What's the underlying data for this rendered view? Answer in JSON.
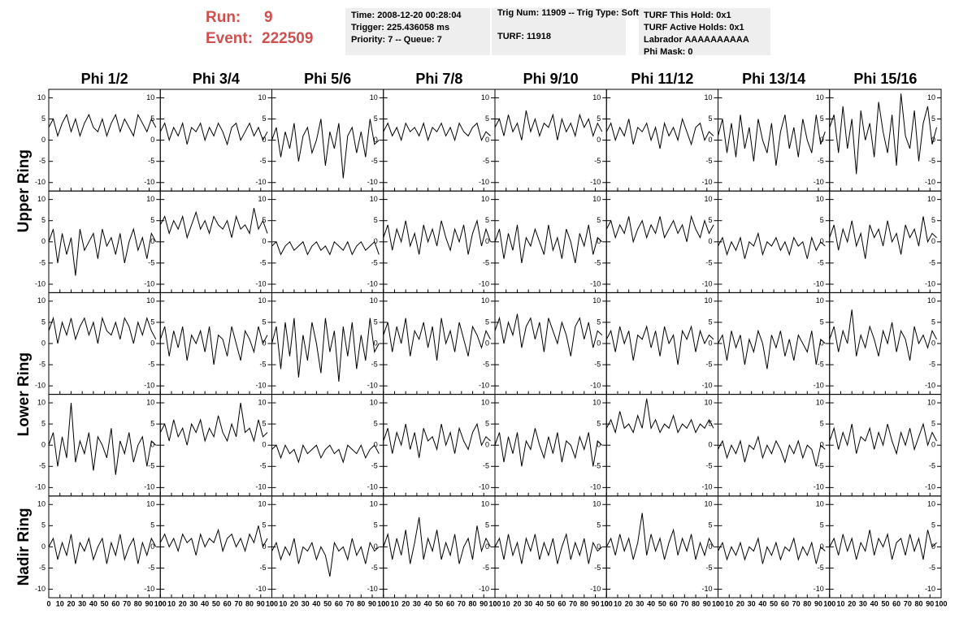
{
  "header": {
    "run_label": "Run:",
    "run": 9,
    "event_label": "Event:",
    "event": 222509
  },
  "info": [
    [
      "Time: 2008-12-20 00:28:04",
      "Trigger: 225.436058 ms",
      "Priority: 7 -- Queue: 7"
    ],
    [
      "Trig Num: 11909 -- Trig Type: Soft",
      "TURF: 11918"
    ],
    [
      "TURF This Hold: 0x1",
      "TURF Active Holds: 0x1",
      "Labrador AAAAAAAAAA",
      "Phi Mask: 0"
    ]
  ],
  "columns": [
    "Phi 1/2",
    "Phi 3/4",
    "Phi 5/6",
    "Phi 7/8",
    "Phi 9/10",
    "Phi 11/12",
    "Phi 13/14",
    "Phi 15/16"
  ],
  "row_labels": [
    "Upper Ring",
    "Lower Ring",
    "Nadir Ring"
  ],
  "plot": {
    "xlim": [
      0,
      100
    ],
    "ylim": [
      -12,
      12
    ],
    "xticks": [
      0,
      10,
      20,
      30,
      40,
      50,
      60,
      70,
      80,
      90,
      100
    ],
    "yticks": [
      -10,
      -5,
      0,
      5,
      10
    ],
    "x": [
      0,
      4,
      8,
      12,
      16,
      20,
      24,
      28,
      32,
      36,
      40,
      44,
      48,
      52,
      56,
      60,
      64,
      68,
      72,
      76,
      80,
      84,
      88,
      92,
      96
    ],
    "panels": [
      [
        [
          3,
          5,
          1,
          4,
          6,
          2,
          5,
          1,
          4,
          6,
          3,
          2,
          5,
          1,
          4,
          6,
          2,
          5,
          3,
          1,
          6,
          4,
          2,
          5,
          3
        ],
        [
          2,
          4,
          0,
          3,
          1,
          4,
          -1,
          3,
          2,
          4,
          0,
          3,
          1,
          4,
          2,
          -1,
          3,
          4,
          0,
          2,
          4,
          1,
          3,
          0,
          2
        ],
        [
          0,
          3,
          -4,
          2,
          -2,
          4,
          -5,
          1,
          3,
          -3,
          0,
          5,
          -6,
          2,
          -2,
          4,
          -9,
          1,
          3,
          -3,
          2,
          -4,
          5,
          -1,
          0
        ],
        [
          2,
          4,
          1,
          3,
          0,
          4,
          2,
          3,
          1,
          4,
          0,
          3,
          2,
          4,
          1,
          3,
          0,
          4,
          2,
          1,
          3,
          4,
          0,
          2,
          1
        ],
        [
          3,
          5,
          1,
          6,
          2,
          4,
          0,
          7,
          2,
          5,
          1,
          4,
          3,
          6,
          0,
          5,
          2,
          4,
          1,
          6,
          3,
          5,
          1,
          4,
          2
        ],
        [
          2,
          4,
          0,
          3,
          1,
          5,
          -1,
          3,
          2,
          4,
          0,
          3,
          -2,
          4,
          1,
          3,
          0,
          5,
          2,
          -1,
          3,
          4,
          0,
          2,
          1
        ],
        [
          1,
          5,
          -3,
          4,
          -4,
          6,
          -2,
          3,
          -5,
          5,
          0,
          -3,
          4,
          -6,
          2,
          6,
          -2,
          3,
          -4,
          5,
          0,
          -3,
          6,
          -1,
          2
        ],
        [
          3,
          6,
          -3,
          8,
          -2,
          5,
          -8,
          7,
          0,
          4,
          -4,
          9,
          2,
          -3,
          6,
          -6,
          11,
          1,
          -2,
          7,
          -5,
          4,
          8,
          -1,
          3
        ]
      ],
      [
        [
          0,
          3,
          -5,
          2,
          -3,
          1,
          -8,
          3,
          -2,
          0,
          2,
          -4,
          3,
          -1,
          1,
          -3,
          2,
          -5,
          0,
          3,
          -2,
          1,
          -4,
          2,
          0
        ],
        [
          4,
          6,
          2,
          5,
          3,
          6,
          1,
          4,
          7,
          3,
          5,
          2,
          6,
          4,
          3,
          5,
          1,
          6,
          3,
          4,
          2,
          8,
          3,
          5,
          2
        ],
        [
          -1,
          0,
          -3,
          -1,
          0,
          -2,
          -1,
          0,
          -3,
          -1,
          0,
          -2,
          -1,
          -3,
          0,
          -1,
          -2,
          0,
          -3,
          -1,
          0,
          -2,
          -1,
          0,
          -3
        ],
        [
          1,
          4,
          -2,
          3,
          0,
          5,
          -1,
          2,
          -3,
          4,
          0,
          3,
          -1,
          5,
          1,
          -2,
          3,
          0,
          4,
          -3,
          2,
          5,
          -1,
          3,
          0
        ],
        [
          0,
          3,
          -4,
          2,
          -2,
          4,
          -5,
          1,
          -1,
          3,
          0,
          -3,
          4,
          -2,
          1,
          -4,
          3,
          0,
          -5,
          2,
          -1,
          4,
          -3,
          1,
          0
        ],
        [
          3,
          5,
          1,
          4,
          2,
          6,
          0,
          3,
          5,
          1,
          4,
          2,
          6,
          1,
          3,
          5,
          2,
          4,
          0,
          6,
          3,
          1,
          5,
          2,
          4
        ],
        [
          -1,
          1,
          -3,
          0,
          -2,
          1,
          -4,
          0,
          -1,
          2,
          -3,
          0,
          -1,
          1,
          -2,
          0,
          -3,
          1,
          -1,
          0,
          -4,
          1,
          -2,
          0,
          -1
        ],
        [
          1,
          4,
          -2,
          3,
          0,
          5,
          -1,
          2,
          -4,
          4,
          1,
          3,
          -1,
          5,
          0,
          2,
          -3,
          4,
          1,
          3,
          -1,
          6,
          0,
          2,
          1
        ]
      ],
      [
        [
          3,
          6,
          0,
          5,
          2,
          6,
          1,
          4,
          6,
          2,
          5,
          0,
          6,
          3,
          2,
          5,
          1,
          6,
          4,
          0,
          5,
          2,
          6,
          3,
          1
        ],
        [
          1,
          4,
          -3,
          3,
          -1,
          4,
          -4,
          2,
          0,
          3,
          -2,
          4,
          -5,
          2,
          1,
          -3,
          4,
          0,
          -4,
          3,
          1,
          -2,
          4,
          0,
          2
        ],
        [
          0,
          4,
          -6,
          5,
          -3,
          6,
          -8,
          2,
          -4,
          5,
          0,
          -7,
          6,
          -2,
          3,
          -9,
          4,
          -3,
          5,
          -6,
          2,
          -4,
          6,
          -2,
          0
        ],
        [
          2,
          5,
          -2,
          4,
          0,
          6,
          -3,
          3,
          1,
          5,
          -1,
          4,
          -4,
          6,
          0,
          3,
          -2,
          5,
          1,
          -3,
          4,
          2,
          -1,
          3,
          1
        ],
        [
          3,
          6,
          0,
          5,
          2,
          7,
          -1,
          4,
          6,
          1,
          5,
          -2,
          6,
          3,
          0,
          5,
          2,
          -3,
          4,
          6,
          1,
          5,
          -1,
          3,
          2
        ],
        [
          1,
          3,
          -2,
          4,
          0,
          3,
          -4,
          2,
          1,
          4,
          -1,
          3,
          -3,
          4,
          0,
          2,
          -5,
          3,
          1,
          4,
          -2,
          3,
          0,
          2,
          1
        ],
        [
          0,
          2,
          -4,
          3,
          -1,
          2,
          -5,
          1,
          -2,
          3,
          0,
          -6,
          2,
          -1,
          3,
          -3,
          1,
          -4,
          2,
          0,
          -2,
          3,
          -5,
          1,
          0
        ],
        [
          1,
          4,
          -2,
          3,
          0,
          8,
          -3,
          2,
          -1,
          4,
          1,
          -3,
          3,
          0,
          5,
          -2,
          3,
          1,
          -4,
          4,
          0,
          2,
          -1,
          3,
          1
        ]
      ],
      [
        [
          0,
          3,
          -5,
          2,
          -3,
          10,
          -4,
          1,
          -2,
          3,
          -6,
          2,
          0,
          -3,
          4,
          -7,
          1,
          -2,
          3,
          -4,
          0,
          2,
          -5,
          1,
          0
        ],
        [
          3,
          5,
          1,
          6,
          2,
          4,
          0,
          5,
          3,
          6,
          1,
          4,
          2,
          7,
          3,
          1,
          5,
          2,
          10,
          3,
          4,
          1,
          6,
          2,
          3
        ],
        [
          -1,
          0,
          -3,
          0,
          -2,
          -1,
          -4,
          0,
          -2,
          -1,
          0,
          -3,
          -1,
          0,
          -2,
          -1,
          -4,
          0,
          -1,
          -2,
          0,
          -3,
          -1,
          0,
          -2
        ],
        [
          1,
          4,
          -2,
          3,
          0,
          5,
          -1,
          3,
          -3,
          4,
          1,
          2,
          -1,
          5,
          0,
          3,
          -2,
          4,
          1,
          -1,
          3,
          5,
          0,
          2,
          1
        ],
        [
          0,
          3,
          -4,
          2,
          -2,
          3,
          -5,
          1,
          -1,
          4,
          0,
          -3,
          2,
          -2,
          3,
          -4,
          1,
          0,
          -3,
          2,
          -1,
          3,
          -5,
          1,
          0
        ],
        [
          4,
          6,
          3,
          8,
          4,
          5,
          3,
          7,
          4,
          11,
          4,
          6,
          3,
          5,
          4,
          7,
          3,
          5,
          4,
          6,
          3,
          5,
          4,
          6,
          4
        ],
        [
          -1,
          1,
          -3,
          0,
          -2,
          1,
          -4,
          0,
          -1,
          2,
          -3,
          0,
          -2,
          1,
          -1,
          -4,
          0,
          -2,
          1,
          -3,
          0,
          -1,
          -5,
          0,
          -1
        ],
        [
          1,
          4,
          -1,
          3,
          0,
          5,
          -2,
          2,
          1,
          4,
          -1,
          3,
          0,
          5,
          1,
          -2,
          3,
          0,
          4,
          -1,
          2,
          5,
          0,
          3,
          1
        ]
      ],
      [
        [
          0,
          2,
          -3,
          1,
          -2,
          3,
          -4,
          1,
          -1,
          2,
          -3,
          0,
          2,
          -4,
          1,
          -2,
          3,
          -3,
          0,
          2,
          -4,
          1,
          -2,
          2,
          0
        ],
        [
          1,
          3,
          0,
          2,
          -1,
          3,
          1,
          2,
          -2,
          3,
          0,
          2,
          1,
          4,
          -1,
          2,
          3,
          0,
          2,
          -1,
          3,
          1,
          5,
          0,
          2
        ],
        [
          -1,
          1,
          -3,
          0,
          -2,
          2,
          -4,
          0,
          -1,
          1,
          -3,
          0,
          -2,
          -7,
          1,
          -1,
          0,
          -3,
          2,
          -2,
          0,
          -4,
          1,
          -1,
          0
        ],
        [
          0,
          3,
          -3,
          2,
          -2,
          4,
          -4,
          1,
          7,
          -3,
          2,
          -1,
          4,
          -3,
          1,
          -2,
          3,
          -4,
          0,
          2,
          -3,
          5,
          -1,
          2,
          0
        ],
        [
          0,
          2,
          -3,
          3,
          -2,
          1,
          -4,
          2,
          -1,
          3,
          -3,
          1,
          -2,
          2,
          -4,
          0,
          3,
          -3,
          1,
          -2,
          2,
          -4,
          1,
          -1,
          0
        ],
        [
          0,
          2,
          -2,
          3,
          -1,
          2,
          -3,
          1,
          8,
          -2,
          3,
          -1,
          2,
          -3,
          1,
          4,
          -2,
          2,
          -1,
          3,
          -3,
          1,
          -2,
          2,
          0
        ],
        [
          -1,
          1,
          -3,
          0,
          -2,
          1,
          -3,
          0,
          -1,
          2,
          -4,
          0,
          -2,
          1,
          -3,
          0,
          -1,
          2,
          -3,
          0,
          -2,
          1,
          -4,
          0,
          -1
        ],
        [
          0,
          2,
          -2,
          3,
          -1,
          2,
          -3,
          1,
          -1,
          4,
          -2,
          2,
          0,
          3,
          -3,
          1,
          2,
          -2,
          3,
          -1,
          2,
          -3,
          4,
          0,
          1
        ]
      ]
    ]
  }
}
